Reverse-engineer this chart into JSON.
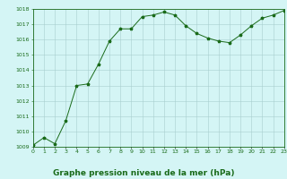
{
  "x": [
    0,
    1,
    2,
    3,
    4,
    5,
    6,
    7,
    8,
    9,
    10,
    11,
    12,
    13,
    14,
    15,
    16,
    17,
    18,
    19,
    20,
    21,
    22,
    23
  ],
  "y": [
    1009.1,
    1009.6,
    1009.2,
    1010.7,
    1013.0,
    1013.1,
    1014.4,
    1015.9,
    1016.7,
    1016.7,
    1017.5,
    1017.6,
    1017.8,
    1017.6,
    1016.9,
    1016.4,
    1016.1,
    1015.9,
    1015.8,
    1016.3,
    1016.9,
    1017.4,
    1017.6,
    1017.9
  ],
  "line_color": "#1a6b1a",
  "marker": "*",
  "marker_size": 2.5,
  "background_color": "#d4f5f5",
  "grid_color": "#a8cece",
  "xlabel": "Graphe pression niveau de la mer (hPa)",
  "xlabel_fontsize": 6.5,
  "xlabel_color": "#1a6b1a",
  "ylim_min": 1009,
  "ylim_max": 1018,
  "ytick_step": 1,
  "xtick_labels": [
    "0",
    "1",
    "2",
    "3",
    "4",
    "5",
    "6",
    "7",
    "8",
    "9",
    "10",
    "11",
    "12",
    "13",
    "14",
    "15",
    "16",
    "17",
    "18",
    "19",
    "20",
    "21",
    "22",
    "23"
  ],
  "tick_fontsize": 4.5,
  "tick_color": "#1a6b1a",
  "border_color": "#1a6b1a",
  "linewidth": 0.7
}
